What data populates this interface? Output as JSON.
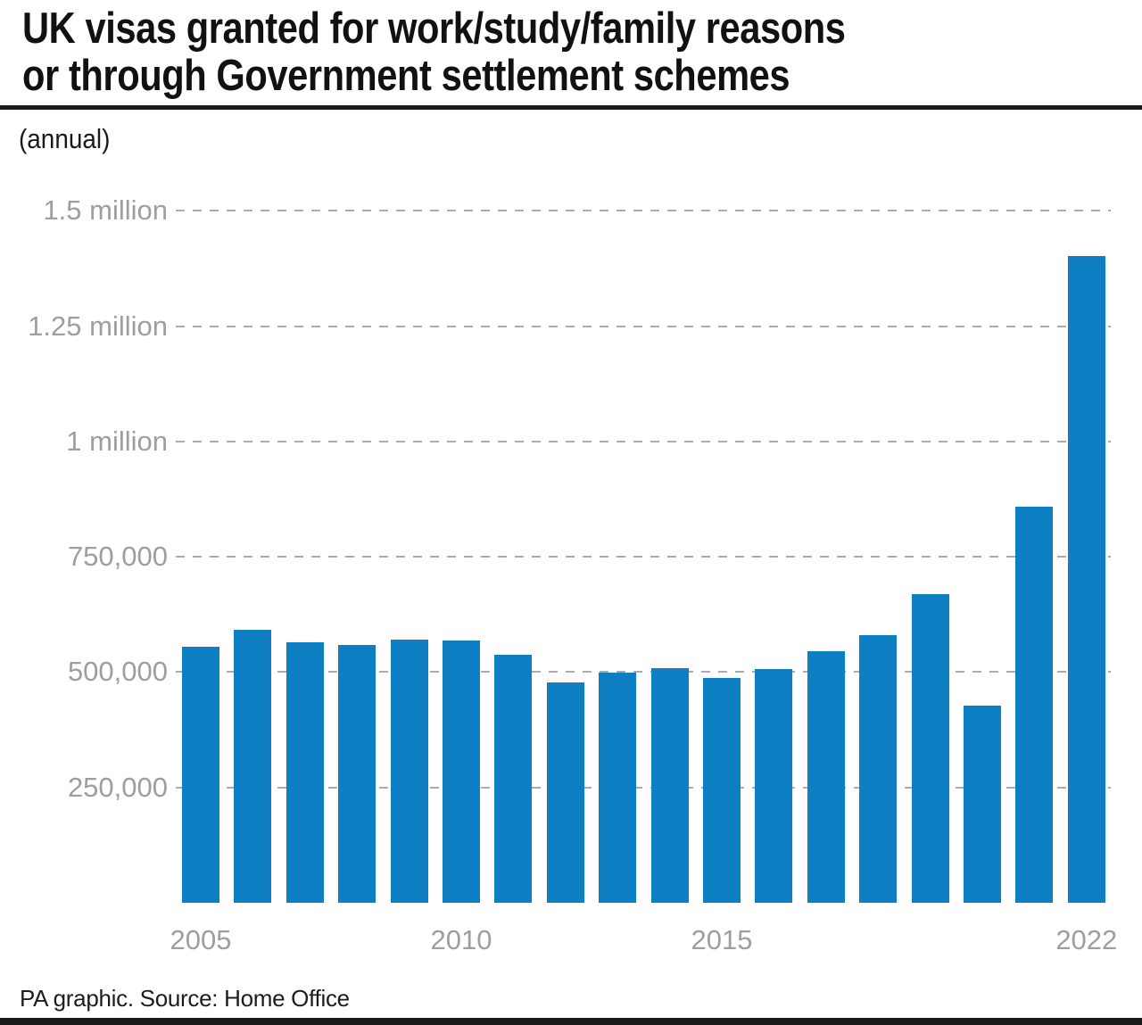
{
  "header": {
    "title_line1": "UK visas granted for work/study/family reasons",
    "title_line2": "or through Government settlement schemes",
    "subtitle": "(annual)"
  },
  "footer": {
    "source": "PA graphic. Source: Home Office"
  },
  "colors": {
    "bar": "#0E7FC2",
    "grid": "#ABABAB",
    "axis_text": "#9E9E9E",
    "title_text": "#111111",
    "rule": "#1A1A1A"
  },
  "chart_data": {
    "type": "bar",
    "title": "UK visas granted for work/study/family reasons or through Government settlement schemes",
    "subtitle": "(annual)",
    "source": "PA graphic. Source: Home Office",
    "xlabel": "",
    "ylabel": "",
    "ylim": [
      0,
      1500000
    ],
    "grid": "horizontal-dashed",
    "legend": "none",
    "categories": [
      "2005",
      "2006",
      "2007",
      "2008",
      "2009",
      "2010",
      "2011",
      "2012",
      "2013",
      "2014",
      "2015",
      "2016",
      "2017",
      "2018",
      "2019",
      "2020",
      "2021",
      "2022"
    ],
    "values": [
      554000,
      591000,
      564000,
      558000,
      570000,
      568000,
      537000,
      477000,
      498000,
      509000,
      487000,
      507000,
      546000,
      580000,
      669000,
      427000,
      858000,
      1402000
    ],
    "yticks": [
      {
        "value": 250000,
        "label": "250,000"
      },
      {
        "value": 500000,
        "label": "500,000"
      },
      {
        "value": 750000,
        "label": "750,000"
      },
      {
        "value": 1000000,
        "label": "1 million"
      },
      {
        "value": 1250000,
        "label": "1.25 million"
      },
      {
        "value": 1500000,
        "label": "1.5 million"
      }
    ],
    "xticks_shown": [
      "2005",
      "2010",
      "2015",
      "2022"
    ]
  }
}
